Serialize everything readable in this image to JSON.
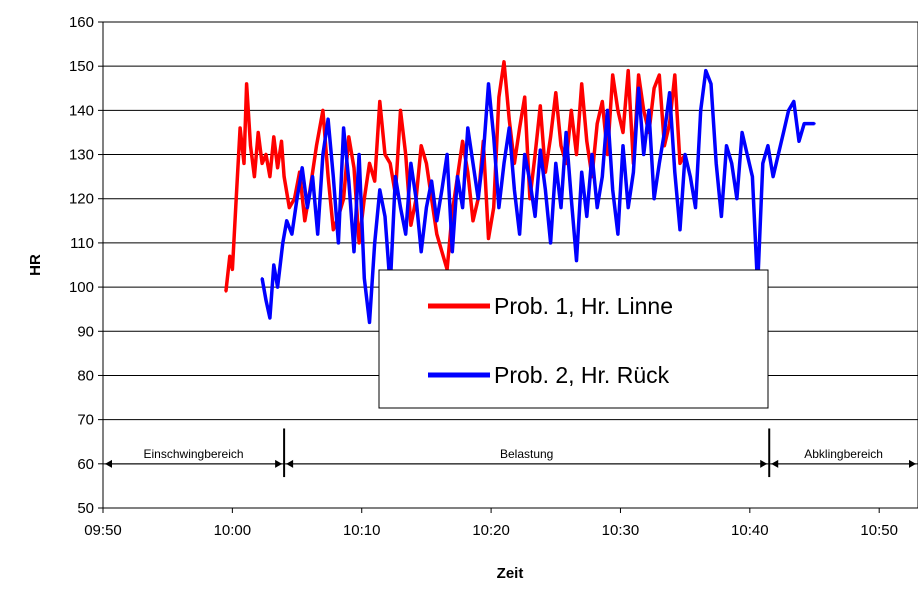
{
  "chart_data": {
    "type": "line",
    "title": "",
    "xlabel": "Zeit",
    "ylabel": "HR",
    "ylim": [
      50,
      160
    ],
    "yticks": [
      "50",
      "60",
      "70",
      "80",
      "90",
      "100",
      "110",
      "120",
      "130",
      "140",
      "150",
      "160"
    ],
    "xticks": [
      "09:50",
      "10:00",
      "10:10",
      "10:20",
      "10:30",
      "10:40",
      "10:50"
    ],
    "xlim": [
      "09:50",
      "10:53"
    ],
    "grid": "horizontal",
    "legend_position": "center",
    "series": [
      {
        "name": "Prob. 1, Hr. Linne",
        "color": "#ff0000",
        "x": [
          "09:59.5",
          "09:59.8",
          "10:00.0",
          "10:00.3",
          "10:00.6",
          "10:00.9",
          "10:01.1",
          "10:01.4",
          "10:01.7",
          "10:02.0",
          "10:02.3",
          "10:02.6",
          "10:02.9",
          "10:03.2",
          "10:03.5",
          "10:03.8",
          "10:04.0",
          "10:04.4",
          "10:04.8",
          "10:05.2",
          "10:05.6",
          "10:06.0",
          "10:06.5",
          "10:07.0",
          "10:07.4",
          "10:07.8",
          "10:08.2",
          "10:08.6",
          "10:09.0",
          "10:09.4",
          "10:09.8",
          "10:10.2",
          "10:10.6",
          "10:11.0",
          "10:11.4",
          "10:11.8",
          "10:12.2",
          "10:12.6",
          "10:13.0",
          "10:13.4",
          "10:13.8",
          "10:14.2",
          "10:14.6",
          "10:15.0",
          "10:15.4",
          "10:15.8",
          "10:16.2",
          "10:16.6",
          "10:17.0",
          "10:17.4",
          "10:17.8",
          "10:18.2",
          "10:18.6",
          "10:19.0",
          "10:19.4",
          "10:19.8",
          "10:20.2",
          "10:20.6",
          "10:21.0",
          "10:21.4",
          "10:21.8",
          "10:22.2",
          "10:22.6",
          "10:23.0",
          "10:23.4",
          "10:23.8",
          "10:24.2",
          "10:24.6",
          "10:25.0",
          "10:25.4",
          "10:25.8",
          "10:26.2",
          "10:26.6",
          "10:27.0",
          "10:27.4",
          "10:27.8",
          "10:28.2",
          "10:28.6",
          "10:29.0",
          "10:29.4",
          "10:29.8",
          "10:30.2",
          "10:30.6",
          "10:31.0",
          "10:31.4",
          "10:31.8",
          "10:32.2",
          "10:32.6",
          "10:33.0",
          "10:33.4",
          "10:33.8",
          "10:34.2",
          "10:34.6",
          "10:35.0"
        ],
        "values": [
          99,
          107,
          104,
          120,
          136,
          128,
          146,
          132,
          125,
          135,
          128,
          130,
          125,
          134,
          127,
          133,
          125,
          118,
          120,
          126,
          115,
          122,
          132,
          140,
          125,
          113,
          116,
          120,
          134,
          127,
          110,
          120,
          128,
          124,
          142,
          130,
          128,
          121,
          140,
          130,
          114,
          120,
          132,
          128,
          120,
          112,
          108,
          104,
          117,
          125,
          133,
          126,
          115,
          120,
          133,
          111,
          118,
          143,
          151,
          138,
          128,
          136,
          143,
          120,
          130,
          141,
          126,
          134,
          144,
          132,
          128,
          140,
          130,
          146,
          133,
          125,
          137,
          142,
          130,
          148,
          140,
          135,
          149,
          128,
          148,
          140,
          135,
          145,
          148,
          132,
          137,
          148,
          128,
          130
        ]
      },
      {
        "name": "Prob. 2, Hr. Rück",
        "color": "#0000ff",
        "x": [
          "10:02.3",
          "10:02.6",
          "10:02.9",
          "10:03.2",
          "10:03.5",
          "10:03.9",
          "10:04.2",
          "10:04.6",
          "10:05.0",
          "10:05.4",
          "10:05.8",
          "10:06.2",
          "10:06.6",
          "10:07.0",
          "10:07.4",
          "10:07.8",
          "10:08.2",
          "10:08.6",
          "10:09.0",
          "10:09.4",
          "10:09.8",
          "10:10.2",
          "10:10.6",
          "10:11.0",
          "10:11.4",
          "10:11.8",
          "10:12.2",
          "10:12.6",
          "10:13.0",
          "10:13.4",
          "10:13.8",
          "10:14.2",
          "10:14.6",
          "10:15.0",
          "10:15.4",
          "10:15.8",
          "10:16.2",
          "10:16.6",
          "10:17.0",
          "10:17.4",
          "10:17.8",
          "10:18.2",
          "10:18.6",
          "10:19.0",
          "10:19.4",
          "10:19.8",
          "10:20.2",
          "10:20.6",
          "10:21.0",
          "10:21.4",
          "10:21.8",
          "10:22.2",
          "10:22.6",
          "10:23.0",
          "10:23.4",
          "10:23.8",
          "10:24.2",
          "10:24.6",
          "10:25.0",
          "10:25.4",
          "10:25.8",
          "10:26.2",
          "10:26.6",
          "10:27.0",
          "10:27.4",
          "10:27.8",
          "10:28.2",
          "10:28.6",
          "10:29.0",
          "10:29.4",
          "10:29.8",
          "10:30.2",
          "10:30.6",
          "10:31.0",
          "10:31.4",
          "10:31.8",
          "10:32.2",
          "10:32.6",
          "10:33.0",
          "10:33.4",
          "10:33.8",
          "10:34.2",
          "10:34.6",
          "10:35.0",
          "10:35.4",
          "10:35.8",
          "10:36.2",
          "10:36.6",
          "10:37.0",
          "10:37.4",
          "10:37.8",
          "10:38.2",
          "10:38.6",
          "10:39.0",
          "10:39.4",
          "10:39.8",
          "10:40.2",
          "10:40.6",
          "10:41.0",
          "10:41.4",
          "10:41.8",
          "10:42.2",
          "10:42.6",
          "10:43.0",
          "10:43.4",
          "10:43.8",
          "10:44.2",
          "10:44.6",
          "10:45.0"
        ],
        "values": [
          102,
          97,
          93,
          105,
          100,
          110,
          115,
          112,
          120,
          127,
          118,
          125,
          112,
          130,
          138,
          125,
          110,
          136,
          124,
          108,
          130,
          102,
          92,
          110,
          122,
          116,
          100,
          125,
          118,
          112,
          128,
          120,
          108,
          118,
          124,
          115,
          122,
          130,
          108,
          125,
          118,
          136,
          128,
          120,
          130,
          146,
          134,
          118,
          128,
          136,
          122,
          112,
          130,
          124,
          116,
          131,
          122,
          110,
          128,
          118,
          135,
          120,
          106,
          126,
          116,
          130,
          118,
          125,
          140,
          122,
          112,
          132,
          118,
          126,
          145,
          130,
          140,
          120,
          128,
          135,
          144,
          126,
          113,
          130,
          125,
          118,
          140,
          149,
          146,
          128,
          116,
          132,
          128,
          120,
          135,
          130,
          125,
          100,
          128,
          132,
          125,
          130,
          135,
          140,
          142,
          133,
          137,
          137,
          137
        ]
      }
    ],
    "annotations": [
      {
        "label": "Einschwingbereich",
        "from": "09:50",
        "to": "10:04"
      },
      {
        "label": "Belastung",
        "from": "10:04",
        "to": "10:41.5"
      },
      {
        "label": "Abklingbereich",
        "from": "10:41.5",
        "to": "10:53"
      }
    ]
  }
}
